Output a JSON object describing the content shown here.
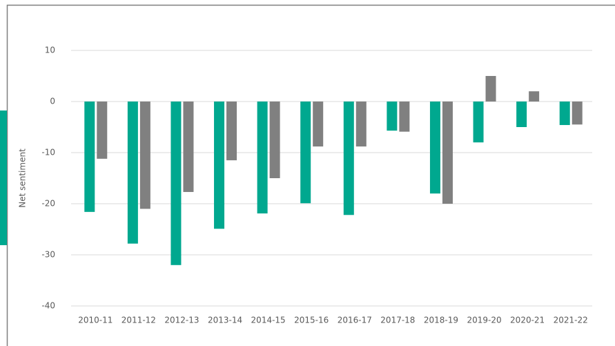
{
  "chart_data": {
    "type": "bar",
    "y_label": "Net sentiment",
    "categories": [
      "2010-11",
      "2011-12",
      "2012-13",
      "2013-14",
      "2014-15",
      "2015-16",
      "2016-17",
      "2017-18",
      "2018-19",
      "2019-20",
      "2020-21",
      "2021-22"
    ],
    "series": [
      {
        "color": "#00a88f",
        "values": [
          -21.6,
          -27.8,
          -32,
          -24.9,
          -21.9,
          -19.9,
          -22.2,
          -5.7,
          -18,
          -8,
          -5,
          -4.6
        ]
      },
      {
        "color": "#808080",
        "values": [
          -11.2,
          -21,
          -17.7,
          -11.5,
          -15,
          -8.8,
          -8.8,
          -5.9,
          -20,
          5,
          2,
          -4.5
        ]
      }
    ],
    "ylim": [
      -40,
      10
    ],
    "yticks": [
      -40,
      -30,
      -20,
      -10,
      0,
      10
    ],
    "grid": true
  }
}
